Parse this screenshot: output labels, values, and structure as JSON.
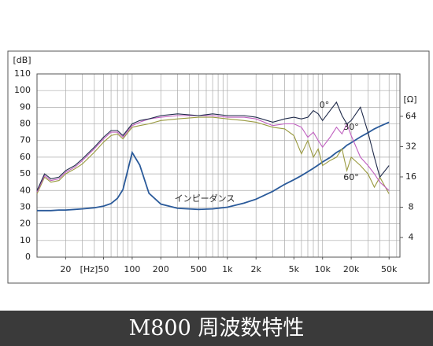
{
  "chart_data": {
    "type": "line",
    "title": "M800 周波数特性",
    "y_unit": "[dB]",
    "y2_unit": "[Ω]",
    "x_unit": "[Hz]",
    "log_x": true,
    "log_y2": true,
    "grid": true,
    "xlim": [
      10,
      65000
    ],
    "xticks": [
      20,
      50,
      100,
      200,
      500,
      {
        "value": 1000,
        "label": "1k"
      },
      {
        "value": 2000,
        "label": "2k"
      },
      {
        "value": 5000,
        "label": "5k"
      },
      {
        "value": 10000,
        "label": "10k"
      },
      {
        "value": 20000,
        "label": "20k"
      },
      {
        "value": 50000,
        "label": "50k"
      }
    ],
    "xgrid": [
      10,
      20,
      30,
      40,
      50,
      60,
      70,
      80,
      90,
      100,
      200,
      300,
      400,
      500,
      600,
      700,
      800,
      900,
      1000,
      2000,
      3000,
      4000,
      5000,
      6000,
      7000,
      8000,
      9000,
      10000,
      20000,
      30000,
      40000,
      50000,
      60000
    ],
    "ylim": [
      0,
      110
    ],
    "yticks": [
      0,
      10,
      20,
      30,
      40,
      50,
      60,
      70,
      80,
      90,
      100,
      110
    ],
    "y2lim": [
      2.55,
      169
    ],
    "y2ticks": [
      4,
      8,
      16,
      32,
      64
    ],
    "x": [
      10,
      12,
      14,
      17,
      20,
      25,
      30,
      40,
      50,
      60,
      70,
      80,
      100,
      120,
      150,
      200,
      300,
      500,
      700,
      1000,
      1500,
      2000,
      3000,
      4000,
      5000,
      6000,
      7000,
      8000,
      9000,
      10000,
      12000,
      14000,
      16000,
      18000,
      20000,
      25000,
      30000,
      35000,
      40000,
      50000
    ],
    "series": [
      {
        "name": "0°",
        "color": "#1f2a4a",
        "values": [
          40,
          50,
          47,
          48,
          52,
          55,
          59,
          66,
          72,
          76,
          76,
          73,
          80,
          82,
          83,
          85,
          86,
          85,
          86,
          85,
          85,
          84,
          81,
          83,
          84,
          83,
          84,
          88,
          86,
          82,
          88,
          93,
          85,
          80,
          82,
          90,
          75,
          60,
          48,
          55
        ]
      },
      {
        "name": "30°",
        "color": "#c060c0",
        "values": [
          39,
          49,
          46,
          47,
          51,
          54,
          58,
          65,
          71,
          75,
          75,
          72,
          79,
          81,
          83,
          84,
          85,
          85,
          85,
          84,
          84,
          83,
          79,
          80,
          80,
          78,
          72,
          75,
          70,
          66,
          72,
          78,
          74,
          80,
          73,
          60,
          55,
          50,
          45,
          40
        ]
      },
      {
        "name": "60°",
        "color": "#9a9a40",
        "values": [
          38,
          48,
          45,
          46,
          50,
          53,
          56,
          63,
          69,
          73,
          74,
          71,
          78,
          79,
          80,
          82,
          83,
          84,
          84,
          83,
          82,
          81,
          78,
          77,
          73,
          62,
          70,
          60,
          65,
          55,
          58,
          60,
          65,
          52,
          60,
          55,
          50,
          42,
          48,
          38
        ]
      },
      {
        "name": "インピーダンス",
        "color": "#2a5a9a",
        "axis": "y2",
        "values": [
          7.4,
          7.4,
          7.4,
          7.5,
          7.5,
          7.6,
          7.7,
          7.9,
          8.2,
          8.7,
          9.8,
          12,
          28,
          21,
          11,
          8.6,
          7.8,
          7.6,
          7.7,
          8,
          8.8,
          9.6,
          11.5,
          13.5,
          15,
          16.5,
          18,
          19.5,
          21,
          22.5,
          25,
          28,
          30,
          33,
          35,
          40,
          44,
          48,
          51,
          56
        ]
      }
    ]
  }
}
